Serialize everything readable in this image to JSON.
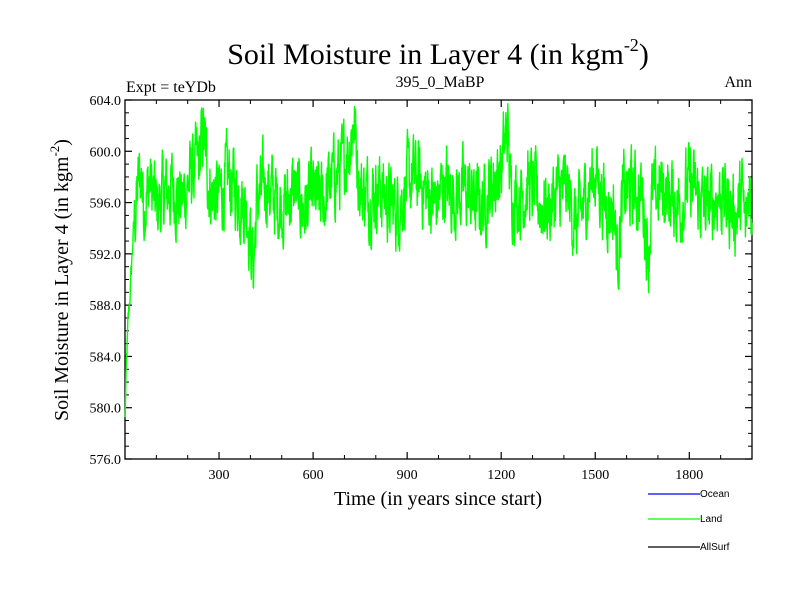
{
  "chart_data": {
    "type": "line",
    "title_main": "Soil Moisture in Layer 4 (in kgm",
    "title_sup": "-2",
    "title_close": ")",
    "subtitle_left": "Expt = teYDb",
    "subtitle_center": "395_0_MaBP",
    "subtitle_right": "Ann",
    "xlabel": "Time (in years since start)",
    "ylabel_main": "Soil Moisture in Layer 4 (in kgm",
    "ylabel_sup": "-2",
    "ylabel_close": ")",
    "xlim": [
      0,
      2000
    ],
    "ylim": [
      576.0,
      604.0
    ],
    "xticks": [
      300,
      600,
      900,
      1200,
      1500,
      1800
    ],
    "xtick_labels": [
      "300",
      "600",
      "900",
      "1200",
      "1500",
      "1800"
    ],
    "yticks": [
      576.0,
      580.0,
      584.0,
      588.0,
      592.0,
      596.0,
      600.0,
      604.0
    ],
    "ytick_labels": [
      "576.0",
      "580.0",
      "584.0",
      "588.0",
      "592.0",
      "596.0",
      "600.0",
      "604.0"
    ],
    "series": [
      {
        "name": "Ocean",
        "color": "#0000ff",
        "x": [],
        "values": []
      },
      {
        "name": "Land",
        "color": "#00ff00",
        "x": [
          0,
          5,
          10,
          15,
          20,
          25,
          30,
          40,
          50,
          60,
          80,
          100,
          120,
          150,
          180,
          210,
          240,
          250,
          270,
          300,
          330,
          360,
          390,
          410,
          420,
          450,
          480,
          510,
          540,
          570,
          600,
          630,
          660,
          690,
          720,
          730,
          750,
          780,
          810,
          840,
          870,
          900,
          930,
          960,
          990,
          1020,
          1050,
          1080,
          1110,
          1140,
          1170,
          1200,
          1220,
          1230,
          1260,
          1290,
          1320,
          1350,
          1380,
          1410,
          1440,
          1470,
          1500,
          1530,
          1560,
          1570,
          1590,
          1620,
          1650,
          1670,
          1680,
          1710,
          1740,
          1770,
          1800,
          1830,
          1860,
          1890,
          1920,
          1950,
          1970,
          1980,
          1990,
          2000
        ],
        "values": [
          579.0,
          583.5,
          586.5,
          588.5,
          590.5,
          593.0,
          594.5,
          596.8,
          598.5,
          596.0,
          597.5,
          595.5,
          596.5,
          597.2,
          596.0,
          598.0,
          599.5,
          601.5,
          597.0,
          596.5,
          598.0,
          596.8,
          595.5,
          591.0,
          596.0,
          597.5,
          596.2,
          595.8,
          597.0,
          595.5,
          596.5,
          596.0,
          597.8,
          598.5,
          601.0,
          602.5,
          597.0,
          596.5,
          597.2,
          596.0,
          595.5,
          597.5,
          598.0,
          596.8,
          596.0,
          597.5,
          596.5,
          597.0,
          596.2,
          595.8,
          597.5,
          598.5,
          602.0,
          597.0,
          596.5,
          597.5,
          596.0,
          595.5,
          596.8,
          597.0,
          594.0,
          596.5,
          598.5,
          596.0,
          595.5,
          591.5,
          596.8,
          597.0,
          596.5,
          592.0,
          596.0,
          597.2,
          596.5,
          595.8,
          597.5,
          596.2,
          595.5,
          596.8,
          596.0,
          595.0,
          596.5,
          593.5,
          597.5,
          595.5
        ]
      },
      {
        "name": "AllSurf",
        "color": "#000000",
        "x": [],
        "values": []
      }
    ],
    "noise_amplitude": 2.2,
    "legend_position": "bottom-right"
  }
}
